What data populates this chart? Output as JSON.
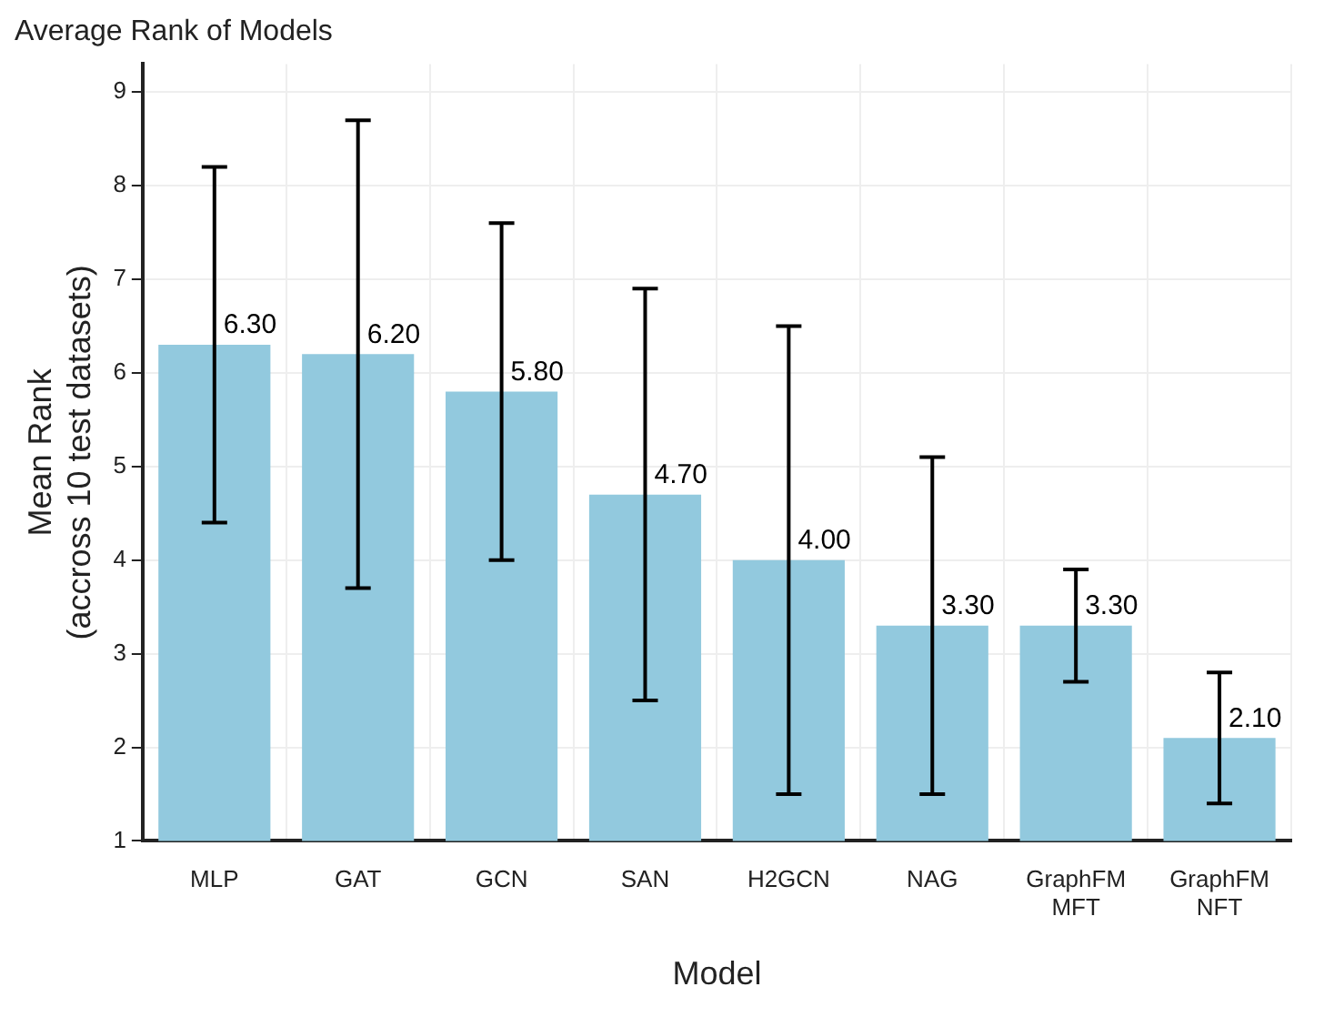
{
  "chart_data": {
    "type": "bar",
    "title": "Average Rank of Models",
    "xlabel": "Model",
    "ylabel": "Mean Rank\n(accross 10 test datasets)",
    "categories": [
      "MLP",
      "GAT",
      "GCN",
      "SAN",
      "H2GCN",
      "NAG",
      "GraphFM\nMFT",
      "GraphFM\nNFT"
    ],
    "values": [
      6.3,
      6.2,
      5.8,
      4.7,
      4.0,
      3.3,
      3.3,
      2.1
    ],
    "value_labels": [
      "6.30",
      "6.20",
      "5.80",
      "4.70",
      "4.00",
      "3.30",
      "3.30",
      "2.10"
    ],
    "errors": [
      [
        4.4,
        8.2
      ],
      [
        3.7,
        8.7
      ],
      [
        4.0,
        7.6
      ],
      [
        2.5,
        6.9
      ],
      [
        1.5,
        6.5
      ],
      [
        1.5,
        5.1
      ],
      [
        2.7,
        3.9
      ],
      [
        1.4,
        2.8
      ]
    ],
    "color": "#92c9de",
    "ylim": [
      1,
      9.3
    ],
    "yticks": [
      1,
      2,
      3,
      4,
      5,
      6,
      7,
      8,
      9
    ],
    "grid": true
  }
}
